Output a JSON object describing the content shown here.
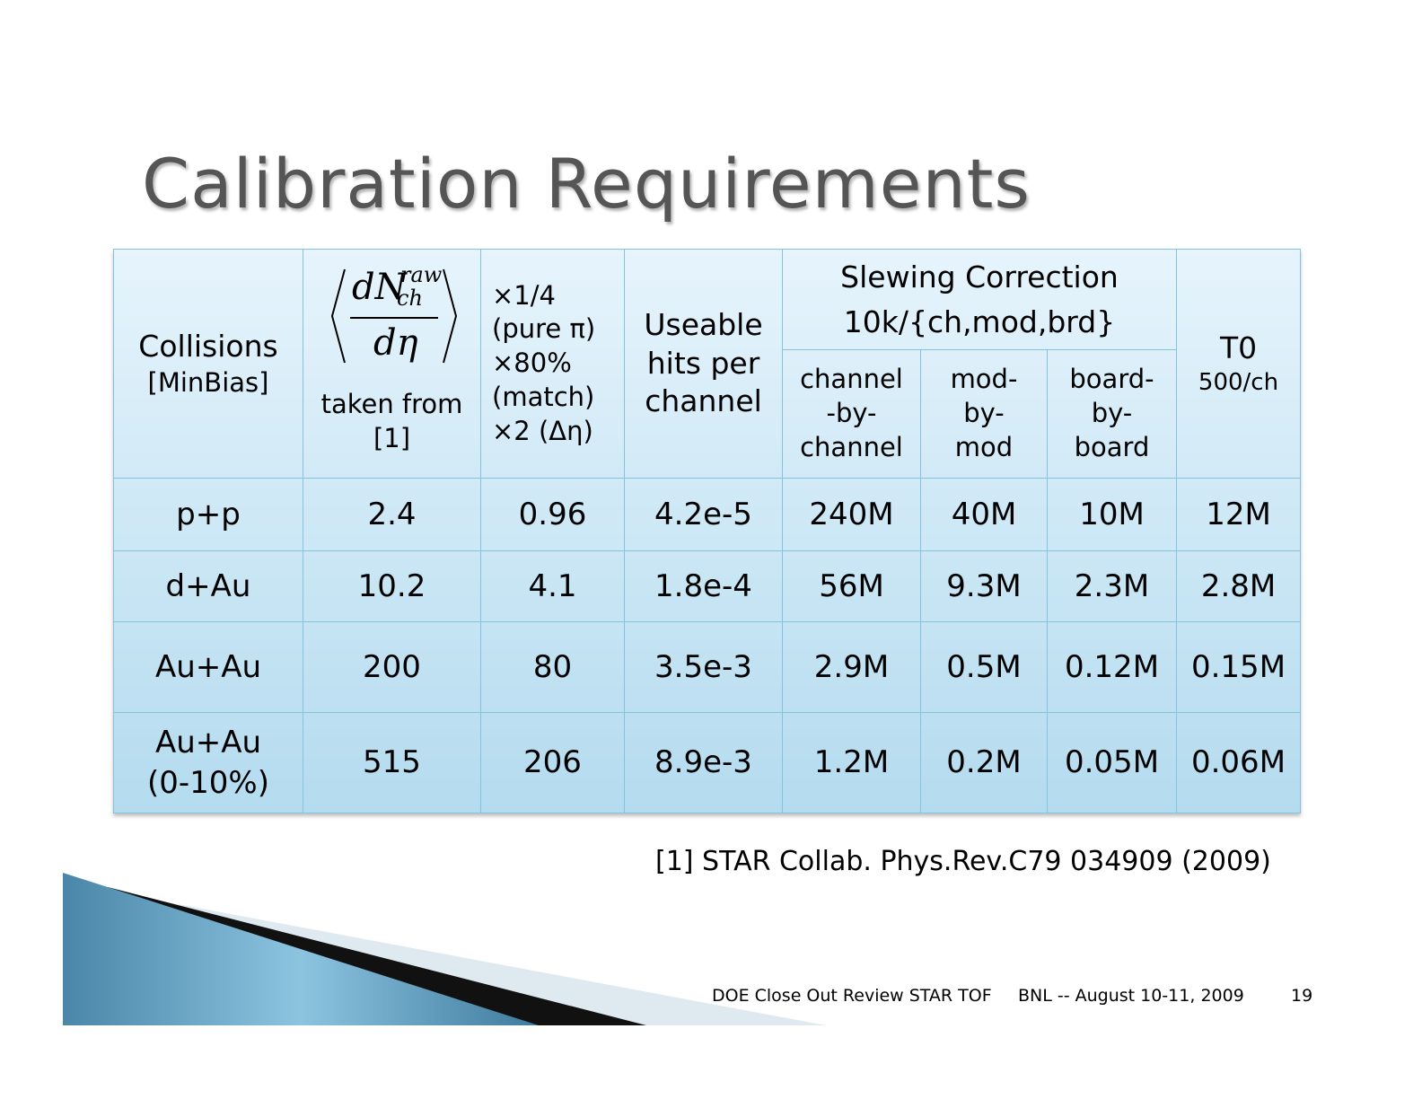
{
  "title": "Calibration Requirements",
  "table": {
    "header": {
      "collisions": [
        "Collisions",
        "[MinBias]"
      ],
      "multiplicity": {
        "numerator": "dN",
        "superscript": "raw",
        "subscript": "ch",
        "denominator": "dη",
        "note": [
          "taken from",
          "[1]"
        ]
      },
      "factors": [
        "×1/4",
        "(pure π)",
        "×80%",
        "(match)",
        "×2 (Δη)"
      ],
      "hits": [
        "Useable",
        "hits per",
        "channel"
      ],
      "slewing": {
        "title": [
          "Slewing Correction",
          "10k/{ch,mod,brd}"
        ],
        "columns": [
          [
            "channel",
            "-by-",
            "channel"
          ],
          [
            "mod-",
            "by-",
            "mod"
          ],
          [
            "board-",
            "by-",
            "board"
          ]
        ]
      },
      "t0": [
        "T0",
        "500/ch"
      ]
    },
    "rows": [
      [
        [
          "p+p"
        ],
        "2.4",
        "0.96",
        "4.2e-5",
        "240M",
        "40M",
        "10M",
        "12M"
      ],
      [
        [
          "d+Au"
        ],
        "10.2",
        "4.1",
        "1.8e-4",
        "56M",
        "9.3M",
        "2.3M",
        "2.8M"
      ],
      [
        [
          "Au+Au"
        ],
        "200",
        "80",
        "3.5e-3",
        "2.9M",
        "0.5M",
        "0.12M",
        "0.15M"
      ],
      [
        [
          "Au+Au",
          "(0-10%)"
        ],
        "515",
        "206",
        "8.9e-3",
        "1.2M",
        "0.2M",
        "0.05M",
        "0.06M"
      ]
    ]
  },
  "footnote": "[1] STAR Collab. Phys.Rev.C79 034909 (2009)",
  "footer": {
    "event": "DOE Close Out Review STAR TOF",
    "place_date": "BNL -- August 10-11, 2009",
    "page": "19"
  }
}
